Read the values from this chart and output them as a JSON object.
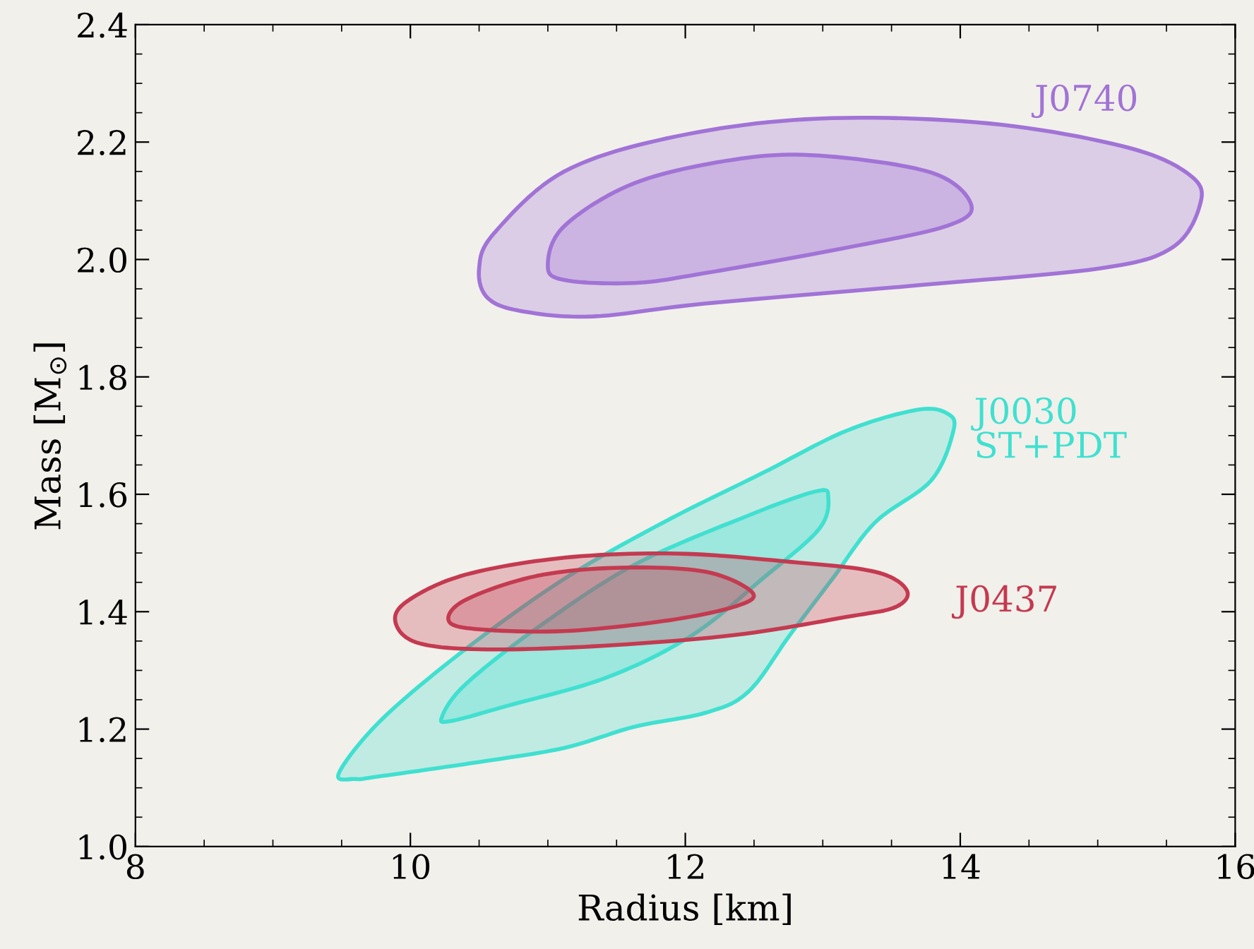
{
  "chart_data": {
    "type": "area",
    "xlabel": "Radius [km]",
    "ylabel": "Mass [M$_{⊙}$]",
    "xlim": [
      8,
      16
    ],
    "xticks": [
      8,
      10,
      12,
      14,
      16
    ],
    "ylim": [
      1.0,
      2.4
    ],
    "yticks": [
      {
        "value": 1,
        "label": "1.0"
      },
      1.2,
      1.4,
      1.6,
      1.8,
      {
        "value": 2,
        "label": "2.0"
      },
      2.2,
      2.4
    ],
    "grid": false,
    "legend": false,
    "series": [
      {
        "name": "J0740",
        "color": "#a173d6",
        "x": [
          10.5,
          10.61,
          11.12,
          11.94,
          12.97,
          14.2,
          15.23,
          15.69,
          15.74,
          15.54,
          15.02,
          13.69,
          12.15,
          11.33,
          10.81,
          10.56,
          10.5
        ],
        "values": [
          1.985,
          2.045,
          2.15,
          2.21,
          2.24,
          2.232,
          2.19,
          2.14,
          2.09,
          2.02,
          1.985,
          1.956,
          1.925,
          1.903,
          1.912,
          1.935,
          1.985
        ]
      },
      {
        "color": "#a173d6",
        "x": [
          11.0,
          11.12,
          11.63,
          12.35,
          12.97,
          13.79,
          14.08,
          13.9,
          13.17,
          12.15,
          11.63,
          11.12,
          11.0
        ],
        "values": [
          1.99,
          2.057,
          2.13,
          2.17,
          2.177,
          2.148,
          2.093,
          2.057,
          2.02,
          1.977,
          1.96,
          1.965,
          1.99
        ]
      },
      {
        "name": "J0030\nST+PDT",
        "color": "#40e0d0",
        "x": [
          9.48,
          9.79,
          10.4,
          11.12,
          11.84,
          12.56,
          13.17,
          13.69,
          13.91,
          13.95,
          13.79,
          13.38,
          13.07,
          12.76,
          12.46,
          12.15,
          11.63,
          11.12,
          10.5,
          9.79,
          9.6,
          9.48
        ],
        "values": [
          1.125,
          1.216,
          1.336,
          1.456,
          1.552,
          1.636,
          1.708,
          1.744,
          1.737,
          1.708,
          1.624,
          1.552,
          1.456,
          1.36,
          1.264,
          1.228,
          1.204,
          1.168,
          1.144,
          1.12,
          1.115,
          1.125
        ]
      },
      {
        "color": "#40e0d0",
        "x": [
          10.23,
          10.4,
          10.92,
          11.63,
          12.46,
          12.95,
          13.04,
          12.97,
          12.56,
          12.05,
          11.43,
          10.71,
          10.3,
          10.23
        ],
        "values": [
          1.221,
          1.276,
          1.372,
          1.48,
          1.564,
          1.605,
          1.595,
          1.54,
          1.456,
          1.36,
          1.288,
          1.24,
          1.214,
          1.221
        ]
      },
      {
        "name": "J0437",
        "color": "#c43a50",
        "x": [
          9.89,
          9.99,
          10.4,
          11.12,
          11.94,
          12.76,
          13.38,
          13.61,
          13.53,
          13.17,
          12.35,
          11.33,
          10.5,
          10.04,
          9.89
        ],
        "values": [
          1.384,
          1.42,
          1.463,
          1.492,
          1.499,
          1.485,
          1.468,
          1.437,
          1.408,
          1.391,
          1.36,
          1.341,
          1.336,
          1.348,
          1.384
        ]
      },
      {
        "color": "#c43a50",
        "x": [
          10.28,
          10.4,
          10.92,
          11.53,
          12.15,
          12.49,
          12.35,
          11.84,
          11.12,
          10.5,
          10.28
        ],
        "values": [
          1.384,
          1.42,
          1.461,
          1.475,
          1.468,
          1.432,
          1.408,
          1.384,
          1.367,
          1.37,
          1.384
        ]
      }
    ]
  }
}
